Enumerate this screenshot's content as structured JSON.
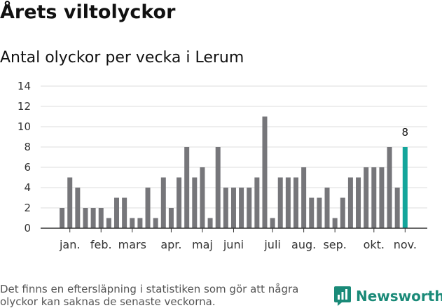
{
  "header": {
    "title": "Årets viltolyckor",
    "subtitle": "Antal olyckor per vecka i Lerum"
  },
  "footer": {
    "note": "Det finns en eftersläpning i statistiken som gör att några olyckor kan saknas de senaste veckorna.",
    "brand": "Newsworthy"
  },
  "colors": {
    "bar": "#76767a",
    "highlight": "#13a59b",
    "grid": "#dddddd",
    "axis": "#333333",
    "brand": "#1a8a78"
  },
  "chart_data": {
    "type": "bar",
    "title": "Antal olyckor per vecka i Lerum",
    "xlabel": "",
    "ylabel": "",
    "ylim": [
      0,
      14
    ],
    "yticks": [
      0,
      2,
      4,
      6,
      8,
      10,
      12,
      14
    ],
    "grid": true,
    "values": [
      2,
      5,
      4,
      2,
      2,
      2,
      1,
      3,
      3,
      1,
      1,
      4,
      1,
      5,
      2,
      5,
      8,
      5,
      6,
      1,
      8,
      4,
      4,
      4,
      4,
      5,
      11,
      1,
      5,
      5,
      5,
      6,
      3,
      3,
      4,
      1,
      3,
      5,
      5,
      6,
      6,
      6,
      8,
      4,
      8
    ],
    "highlight_index": 44,
    "highlight_label": "8",
    "months": [
      {
        "label": "jan.",
        "week": 2
      },
      {
        "label": "feb.",
        "week": 6
      },
      {
        "label": "mars",
        "week": 10
      },
      {
        "label": "apr.",
        "week": 15
      },
      {
        "label": "maj",
        "week": 19
      },
      {
        "label": "juni",
        "week": 23
      },
      {
        "label": "juli",
        "week": 28
      },
      {
        "label": "aug.",
        "week": 32
      },
      {
        "label": "sep.",
        "week": 36
      },
      {
        "label": "okt.",
        "week": 41
      },
      {
        "label": "nov.",
        "week": 45
      }
    ]
  }
}
